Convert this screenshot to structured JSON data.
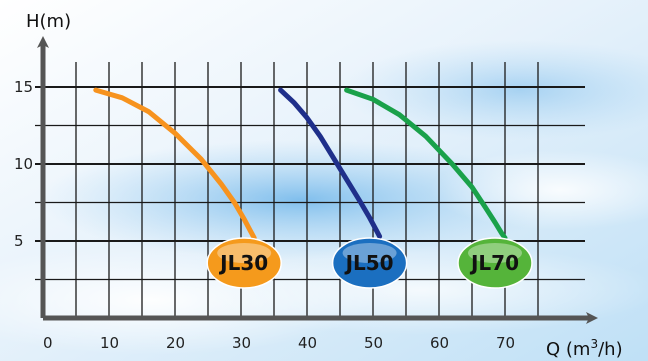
{
  "chart_data": {
    "type": "line",
    "ylabel": "H(m)",
    "xlabel_prefix": "Q (m",
    "xlabel_sup": "3",
    "xlabel_suffix": "/h)",
    "xlim": [
      0,
      78
    ],
    "ylim": [
      0,
      16
    ],
    "x_ticks": [
      0,
      10,
      20,
      30,
      40,
      50,
      60,
      70
    ],
    "y_ticks": [
      5,
      10,
      15
    ],
    "grid": true,
    "series": [
      {
        "name": "JL30",
        "color": "#f7931e",
        "badge_fill": "#f59a1c",
        "x": [
          8,
          12,
          16,
          20,
          24,
          27,
          29,
          30.5,
          31.5,
          32
        ],
        "y": [
          14.8,
          14.3,
          13.4,
          12.0,
          10.3,
          8.7,
          7.5,
          6.4,
          5.6,
          5.2
        ]
      },
      {
        "name": "JL50",
        "color": "#1f2f8a",
        "badge_fill": "#1b6fc0",
        "x": [
          36,
          38,
          40,
          42,
          44,
          46,
          48,
          49.5,
          50.5,
          51
        ],
        "y": [
          14.8,
          14.0,
          13.0,
          11.8,
          10.4,
          9.0,
          7.6,
          6.5,
          5.7,
          5.3
        ]
      },
      {
        "name": "JL70",
        "color": "#1aa14a",
        "badge_fill": "#55b43a",
        "x": [
          46,
          50,
          54,
          58,
          62,
          65,
          67,
          68.5,
          69.5,
          70
        ],
        "y": [
          14.8,
          14.2,
          13.2,
          11.8,
          10.0,
          8.5,
          7.2,
          6.2,
          5.5,
          5.2
        ]
      }
    ]
  }
}
